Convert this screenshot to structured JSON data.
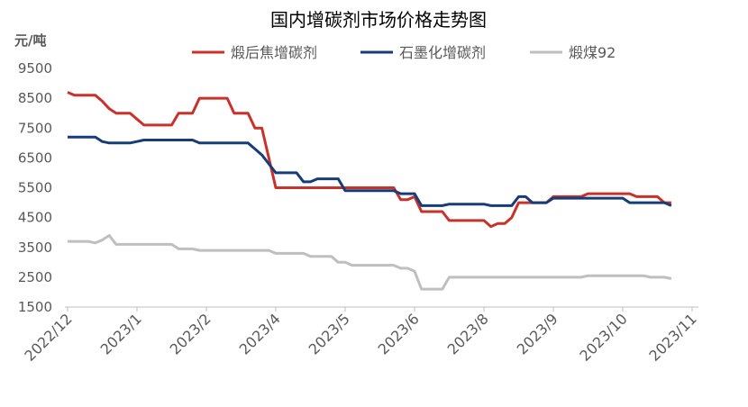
{
  "chart_data": {
    "type": "line",
    "title": "国内增碳剂市场价格走势图",
    "y_label": "元/吨",
    "categories": [
      "2022/12",
      null,
      null,
      null,
      null,
      null,
      null,
      null,
      null,
      null,
      "2023/1",
      null,
      null,
      null,
      null,
      null,
      null,
      null,
      null,
      null,
      "2023/2",
      null,
      null,
      null,
      null,
      null,
      null,
      null,
      null,
      null,
      "2023/4",
      null,
      null,
      null,
      null,
      null,
      null,
      null,
      null,
      null,
      "2023/5",
      null,
      null,
      null,
      null,
      null,
      null,
      null,
      null,
      null,
      "2023/6",
      null,
      null,
      null,
      null,
      null,
      null,
      null,
      null,
      null,
      "2023/8",
      null,
      null,
      null,
      null,
      null,
      null,
      null,
      null,
      null,
      "2023/9",
      null,
      null,
      null,
      null,
      null,
      null,
      null,
      null,
      null,
      "2023/10",
      null,
      null,
      null,
      null,
      null,
      null,
      null,
      null,
      null,
      "2023/11"
    ],
    "series": [
      {
        "name": "煅后焦增碳剂",
        "color": "#c9312a",
        "values": [
          8700,
          8600,
          8600,
          8600,
          8600,
          8400,
          8150,
          8000,
          8000,
          8000,
          7800,
          7600,
          7600,
          7600,
          7600,
          7600,
          8000,
          8000,
          8000,
          8500,
          8500,
          8500,
          8500,
          8500,
          8000,
          8000,
          8000,
          7500,
          7500,
          6500,
          5500,
          5500,
          5500,
          5500,
          5500,
          5500,
          5500,
          5500,
          5500,
          5500,
          5500,
          5500,
          5500,
          5500,
          5500,
          5500,
          5500,
          5500,
          5100,
          5100,
          5200,
          4700,
          4700,
          4700,
          4700,
          4400,
          4400,
          4400,
          4400,
          4400,
          4400,
          4200,
          4300,
          4300,
          4500,
          5000,
          5000,
          5000,
          5000,
          5000,
          5200,
          5200,
          5200,
          5200,
          5200,
          5300,
          5300,
          5300,
          5300,
          5300,
          5300,
          5300,
          5200,
          5200,
          5200,
          5200,
          5000,
          5000,
          null,
          null,
          null
        ]
      },
      {
        "name": "石墨化增碳剂",
        "color": "#163d7a",
        "values": [
          7200,
          7200,
          7200,
          7200,
          7200,
          7050,
          7000,
          7000,
          7000,
          7000,
          7050,
          7100,
          7100,
          7100,
          7100,
          7100,
          7100,
          7100,
          7100,
          7000,
          7000,
          7000,
          7000,
          7000,
          7000,
          7000,
          7000,
          6800,
          6600,
          6300,
          6000,
          6000,
          6000,
          6000,
          5700,
          5700,
          5800,
          5800,
          5800,
          5800,
          5400,
          5400,
          5400,
          5400,
          5400,
          5400,
          5400,
          5400,
          5300,
          5300,
          5300,
          4900,
          4900,
          4900,
          4900,
          4950,
          4950,
          4950,
          4950,
          4950,
          4950,
          4900,
          4900,
          4900,
          4900,
          5200,
          5200,
          5000,
          5000,
          5000,
          5150,
          5150,
          5150,
          5150,
          5150,
          5150,
          5150,
          5150,
          5150,
          5150,
          5150,
          5000,
          5000,
          5000,
          5000,
          5000,
          5000,
          4900,
          null,
          null,
          null
        ]
      },
      {
        "name": "煅煤92",
        "color": "#bfbfbf",
        "values": [
          3700,
          3700,
          3700,
          3700,
          3650,
          3750,
          3900,
          3600,
          3600,
          3600,
          3600,
          3600,
          3600,
          3600,
          3600,
          3600,
          3450,
          3450,
          3450,
          3400,
          3400,
          3400,
          3400,
          3400,
          3400,
          3400,
          3400,
          3400,
          3400,
          3400,
          3300,
          3300,
          3300,
          3300,
          3300,
          3200,
          3200,
          3200,
          3200,
          3000,
          3000,
          2900,
          2900,
          2900,
          2900,
          2900,
          2900,
          2900,
          2800,
          2800,
          2700,
          2100,
          2100,
          2100,
          2100,
          2500,
          2500,
          2500,
          2500,
          2500,
          2500,
          2500,
          2500,
          2500,
          2500,
          2500,
          2500,
          2500,
          2500,
          2500,
          2500,
          2500,
          2500,
          2500,
          2500,
          2550,
          2550,
          2550,
          2550,
          2550,
          2550,
          2550,
          2550,
          2550,
          2500,
          2500,
          2500,
          2450,
          null,
          null,
          null
        ]
      }
    ],
    "ylim": [
      1500,
      9500
    ],
    "yticks": [
      1500,
      2500,
      3500,
      4500,
      5500,
      6500,
      7500,
      8500,
      9500
    ],
    "grid": false
  }
}
